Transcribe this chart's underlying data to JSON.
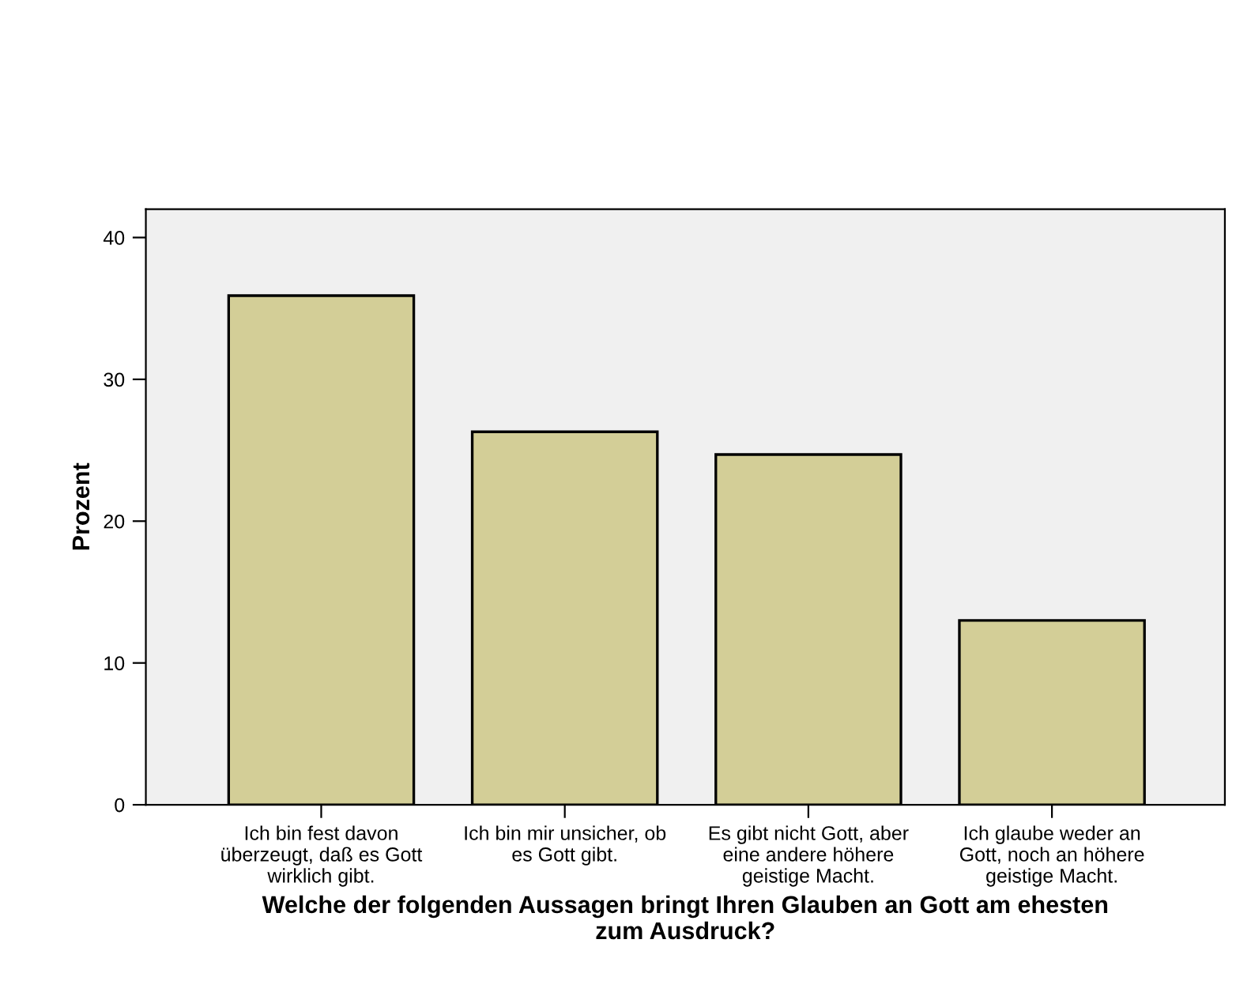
{
  "chart_data": {
    "type": "bar",
    "xlabel": "Welche der folgenden Aussagen bringt Ihren Glauben an Gott am ehesten\nzum Ausdruck?",
    "ylabel": "Prozent",
    "categories": [
      "Ich bin fest davon\nüberzeugt, daß es Gott\nwirklich gibt.",
      "Ich bin mir unsicher, ob\nes Gott gibt.",
      "Es gibt nicht Gott, aber\neine andere höhere\ngeistige Macht.",
      "Ich glaube weder an\nGott, noch an höhere\ngeistige Macht."
    ],
    "values": [
      35.9,
      26.3,
      24.7,
      13.0
    ],
    "color": "#d3ce97",
    "ylim": [
      0,
      42
    ],
    "yticks": [
      0,
      10,
      20,
      30,
      40
    ],
    "grid": false,
    "legend": false
  }
}
